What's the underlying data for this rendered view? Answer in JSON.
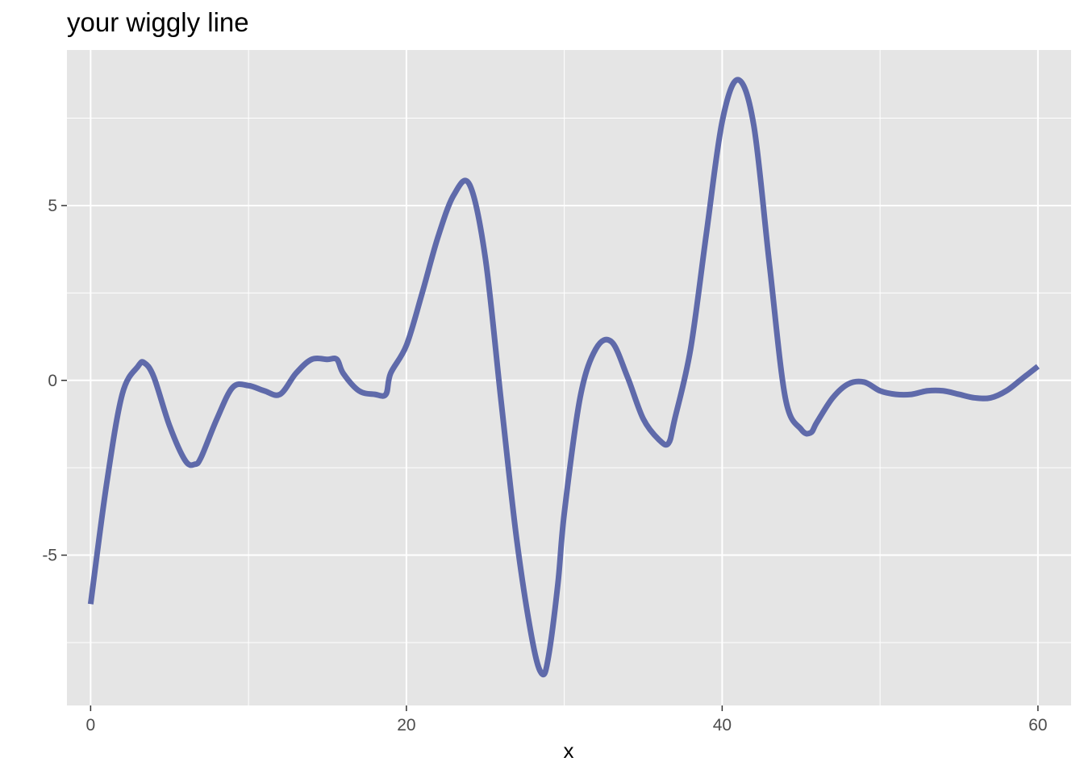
{
  "chart_data": {
    "type": "line",
    "title": "your wiggly line",
    "xlabel": "x",
    "ylabel": "",
    "xlim": [
      -1.5,
      62.1
    ],
    "ylim": [
      -9.3,
      9.45
    ],
    "x_ticks": [
      0,
      20,
      40,
      60
    ],
    "y_ticks": [
      -5,
      0,
      5
    ],
    "x_tick_labels": [
      "0",
      "20",
      "40",
      "60"
    ],
    "y_tick_labels": [
      "-5",
      "0",
      "5"
    ],
    "grid": true,
    "legend": "none",
    "colors": {
      "panel": "#e5e5e5",
      "grid": "#ffffff",
      "line": "#5f6aaa"
    },
    "series": [
      {
        "x": [
          0,
          1,
          2,
          3,
          3.4,
          4,
          5,
          6,
          6.6,
          7,
          8,
          9,
          10,
          11,
          12,
          13,
          14,
          15,
          15.6,
          16,
          17,
          18,
          18.7,
          19,
          20,
          21,
          22,
          23,
          24,
          25,
          26,
          27,
          28,
          28.6,
          29,
          29.6,
          30,
          31,
          32,
          33,
          34,
          35,
          36,
          36.6,
          37,
          38,
          39,
          40,
          41,
          42,
          43,
          44,
          45,
          45.6,
          46,
          47,
          48,
          49,
          50,
          51,
          52,
          53,
          54,
          55,
          56,
          57,
          58,
          59,
          60
        ],
        "y": [
          -6.4,
          -3.0,
          -0.4,
          0.4,
          0.5,
          0.1,
          -1.3,
          -2.3,
          -2.4,
          -2.2,
          -1.1,
          -0.2,
          -0.15,
          -0.3,
          -0.4,
          0.2,
          0.6,
          0.6,
          0.6,
          0.2,
          -0.3,
          -0.4,
          -0.4,
          0.2,
          1.0,
          2.5,
          4.1,
          5.3,
          5.6,
          3.5,
          -0.6,
          -4.6,
          -7.5,
          -8.4,
          -7.9,
          -5.8,
          -3.8,
          -0.5,
          0.9,
          1.1,
          0.1,
          -1.1,
          -1.7,
          -1.8,
          -1.1,
          0.9,
          4.2,
          7.4,
          8.6,
          7.3,
          3.3,
          -0.5,
          -1.4,
          -1.5,
          -1.2,
          -0.5,
          -0.1,
          -0.05,
          -0.3,
          -0.4,
          -0.4,
          -0.3,
          -0.3,
          -0.4,
          -0.5,
          -0.5,
          -0.3,
          0.05,
          0.4
        ]
      }
    ]
  }
}
